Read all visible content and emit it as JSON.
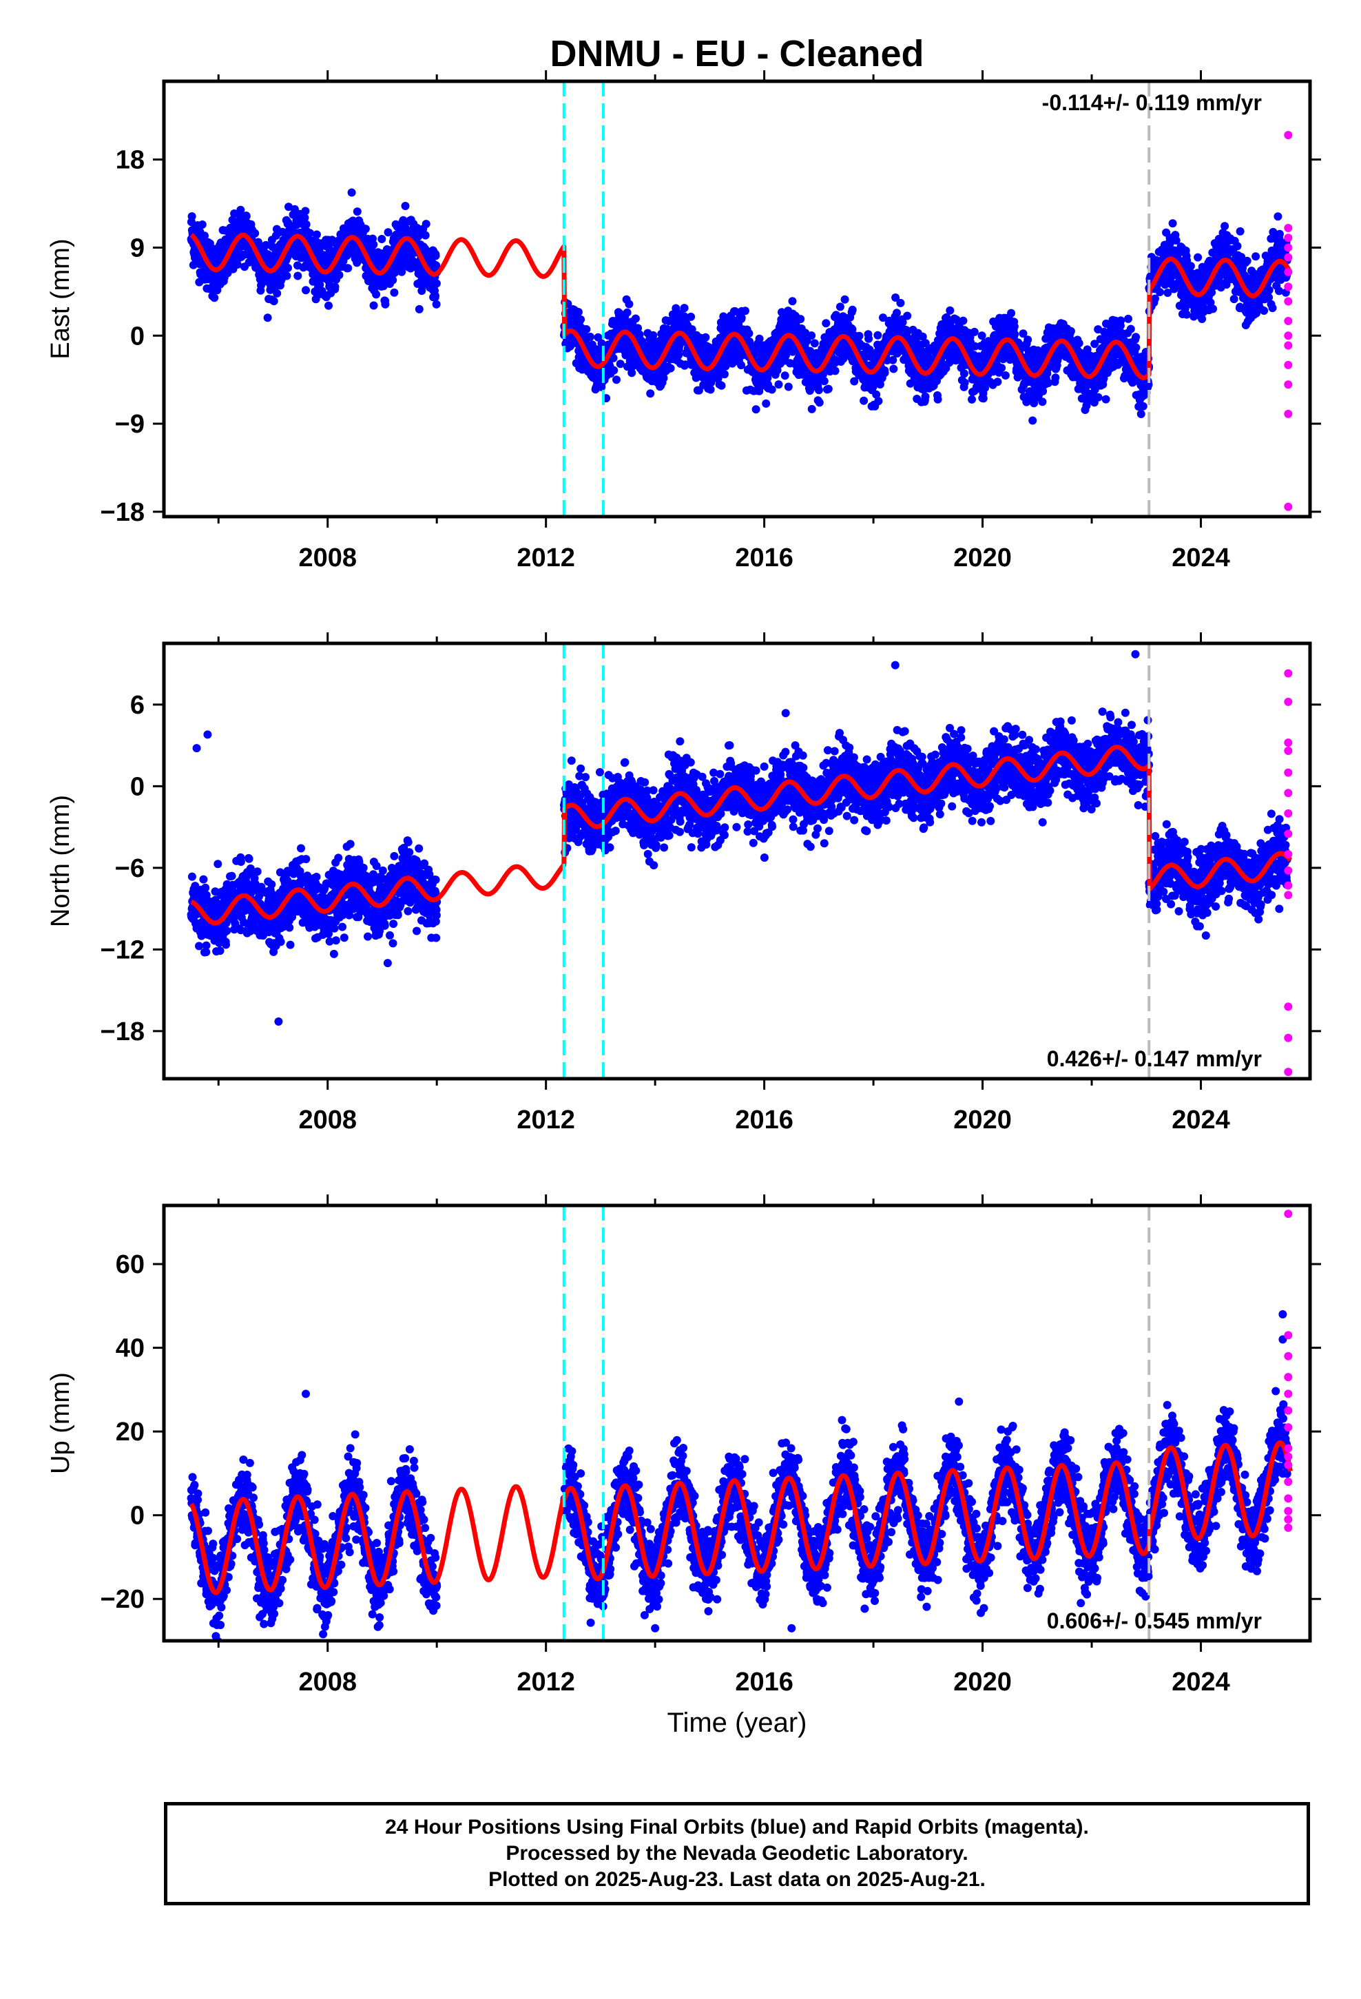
{
  "chart_title": "DNMU  - EU - Cleaned",
  "x_axis_label": "Time (year)",
  "footer": {
    "line1": "24 Hour Positions Using Final Orbits (blue) and Rapid Orbits (magenta).",
    "line2": "Processed by the Nevada Geodetic Laboratory.",
    "line3": "Plotted on 2025-Aug-23. Last data on 2025-Aug-21."
  },
  "colors": {
    "final_orbits": "#0000ff",
    "rapid_orbits": "#ff00ff",
    "model_fit": "#ff0000",
    "equipment_change": "#00ffff",
    "other_offset": "#bbbbbb"
  },
  "chart_data": [
    {
      "type": "scatter",
      "component": "east",
      "ylabel": "East (mm)",
      "xlim": [
        2005.0,
        2026.0
      ],
      "ylim": [
        -18.5,
        26
      ],
      "xticks": [
        2008,
        2012,
        2016,
        2020,
        2024
      ],
      "yticks": [
        -18,
        -9,
        0,
        9,
        18
      ],
      "ytick_labels": [
        "−18",
        "−9",
        "0",
        "9",
        "18"
      ],
      "velocity_label": "-0.114+/- 0.119 mm/yr",
      "velocity_label_pos": "top-right",
      "equipment_changes": [
        2012.33,
        2013.05
      ],
      "other_offsets": [
        2023.05
      ],
      "data_span": [
        2005.5,
        2025.64
      ],
      "data_gap": [
        2010.0,
        2012.33
      ],
      "segments": [
        {
          "start": 2005.5,
          "end": 2012.33,
          "offset": 7.5,
          "amp": 1.8,
          "noise": 1.4
        },
        {
          "start": 2012.33,
          "end": 2023.05,
          "offset": -1.6,
          "amp": 1.8,
          "noise": 1.4
        },
        {
          "start": 2023.05,
          "end": 2025.64,
          "offset": 7.0,
          "amp": 1.8,
          "noise": 1.4
        }
      ],
      "rapid_points": [
        [
          2025.6,
          20.5
        ],
        [
          2025.6,
          11.0
        ],
        [
          2025.6,
          10.0
        ],
        [
          2025.6,
          9.0
        ],
        [
          2025.6,
          8.0
        ],
        [
          2025.6,
          6.5
        ],
        [
          2025.6,
          5.0
        ],
        [
          2025.6,
          3.5
        ],
        [
          2025.6,
          1.5
        ],
        [
          2025.6,
          0.0
        ],
        [
          2025.6,
          -1.0
        ],
        [
          2025.6,
          -3.0
        ],
        [
          2025.6,
          -5.0
        ],
        [
          2025.6,
          -8.0
        ],
        [
          2025.6,
          -17.5
        ]
      ]
    },
    {
      "type": "scatter",
      "component": "north",
      "ylabel": "North (mm)",
      "xlim": [
        2005.0,
        2026.0
      ],
      "ylim": [
        -21.5,
        10.5
      ],
      "xticks": [
        2008,
        2012,
        2016,
        2020,
        2024
      ],
      "yticks": [
        -18,
        -12,
        -6,
        0,
        6
      ],
      "ytick_labels": [
        "−18",
        "−12",
        "−6",
        "0",
        "6"
      ],
      "velocity_label": "0.426+/- 0.147 mm/yr",
      "velocity_label_pos": "bottom-right",
      "equipment_changes": [
        2012.33,
        2013.05
      ],
      "other_offsets": [
        2023.05
      ],
      "data_span": [
        2005.5,
        2025.64
      ],
      "data_gap": [
        2010.0,
        2012.33
      ],
      "segments": [
        {
          "start": 2005.5,
          "end": 2012.33,
          "offset": -5.3,
          "amp": 0.9,
          "noise": 1.2
        },
        {
          "start": 2012.33,
          "end": 2023.05,
          "offset": -1.2,
          "amp": 0.9,
          "noise": 1.2
        },
        {
          "start": 2023.05,
          "end": 2025.64,
          "offset": -10.3,
          "amp": 0.9,
          "noise": 1.2
        }
      ],
      "outliers": [
        [
          2007.1,
          -17.3
        ],
        [
          2009.1,
          -13.0
        ],
        [
          2022.8,
          9.7
        ],
        [
          2018.4,
          8.9
        ],
        [
          2005.6,
          2.8
        ],
        [
          2005.8,
          3.8
        ]
      ],
      "rapid_points": [
        [
          2025.6,
          8.3
        ],
        [
          2025.6,
          6.2
        ],
        [
          2025.6,
          3.2
        ],
        [
          2025.6,
          2.6
        ],
        [
          2025.6,
          1.0
        ],
        [
          2025.6,
          -0.5
        ],
        [
          2025.6,
          -2.0
        ],
        [
          2025.6,
          -3.5
        ],
        [
          2025.6,
          -5.0
        ],
        [
          2025.6,
          -6.2
        ],
        [
          2025.6,
          -7.3
        ],
        [
          2025.6,
          -8.0
        ],
        [
          2025.6,
          -16.2
        ],
        [
          2025.6,
          -18.5
        ],
        [
          2025.6,
          -21.0
        ]
      ]
    },
    {
      "type": "scatter",
      "component": "up",
      "ylabel": "Up (mm)",
      "xlim": [
        2005.0,
        2026.0
      ],
      "ylim": [
        -30,
        74
      ],
      "xticks": [
        2008,
        2012,
        2016,
        2020,
        2024
      ],
      "yticks": [
        -20,
        0,
        20,
        40,
        60
      ],
      "ytick_labels": [
        "−20",
        "0",
        "20",
        "40",
        "60"
      ],
      "velocity_label": "0.606+/- 0.545 mm/yr",
      "velocity_label_pos": "bottom-right",
      "equipment_changes": [
        2012.33,
        2013.05
      ],
      "other_offsets": [
        2023.05
      ],
      "data_span": [
        2005.5,
        2025.64
      ],
      "data_gap": [
        2010.0,
        2012.33
      ],
      "segments": [
        {
          "start": 2005.5,
          "end": 2012.33,
          "offset": -2.0,
          "amp": 11.0,
          "noise": 4.5
        },
        {
          "start": 2012.33,
          "end": 2023.05,
          "offset": -3.0,
          "amp": 11.0,
          "noise": 4.5
        },
        {
          "start": 2023.05,
          "end": 2025.64,
          "offset": 0.0,
          "amp": 11.0,
          "noise": 4.5
        }
      ],
      "outliers": [
        [
          2007.6,
          29.0
        ],
        [
          2016.5,
          -27.0
        ],
        [
          2021.8,
          -21.0
        ],
        [
          2014.0,
          -27.0
        ],
        [
          2025.5,
          48.0
        ],
        [
          2025.5,
          42.0
        ]
      ],
      "rapid_points": [
        [
          2025.6,
          72.0
        ],
        [
          2025.6,
          43.0
        ],
        [
          2025.6,
          38.0
        ],
        [
          2025.6,
          33.0
        ],
        [
          2025.6,
          29.0
        ],
        [
          2025.6,
          25.0
        ],
        [
          2025.6,
          21.0
        ],
        [
          2025.6,
          16.0
        ],
        [
          2025.6,
          12.0
        ],
        [
          2025.6,
          8.0
        ],
        [
          2025.6,
          4.0
        ],
        [
          2025.6,
          1.0
        ],
        [
          2025.6,
          -1.0
        ],
        [
          2025.6,
          -3.0
        ],
        [
          2025.6,
          14.0
        ]
      ]
    }
  ]
}
